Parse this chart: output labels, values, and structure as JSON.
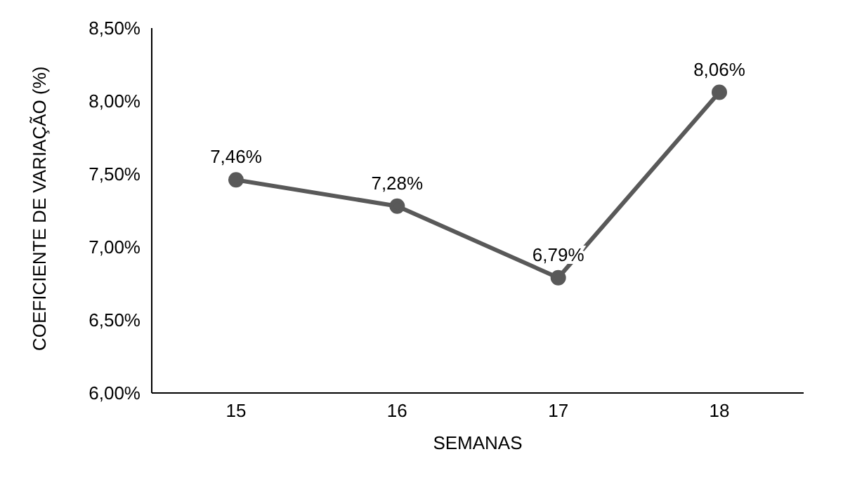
{
  "chart_data": {
    "type": "line",
    "xlabel": "SEMANAS",
    "ylabel": "COEFICIENTE DE VARIAÇÃO (%)",
    "categories": [
      "15",
      "16",
      "17",
      "18"
    ],
    "series": [
      {
        "color": "#595959",
        "values": [
          7.46,
          7.28,
          6.79,
          8.06
        ],
        "value_labels": [
          "7,46%",
          "7,28%",
          "6,79%",
          "8,06%"
        ]
      }
    ],
    "ylim": [
      6,
      8.5
    ],
    "yticks": [
      {
        "value": 6,
        "label": "6,00%"
      },
      {
        "value": 6.5,
        "label": "6,50%"
      },
      {
        "value": 7,
        "label": "7,00%"
      },
      {
        "value": 7.5,
        "label": "7,50%"
      },
      {
        "value": 8,
        "label": "8,00%"
      },
      {
        "value": 8.5,
        "label": "8,50%"
      }
    ],
    "grid": false,
    "legend": false,
    "marker": "circle",
    "line_style": "solid"
  }
}
